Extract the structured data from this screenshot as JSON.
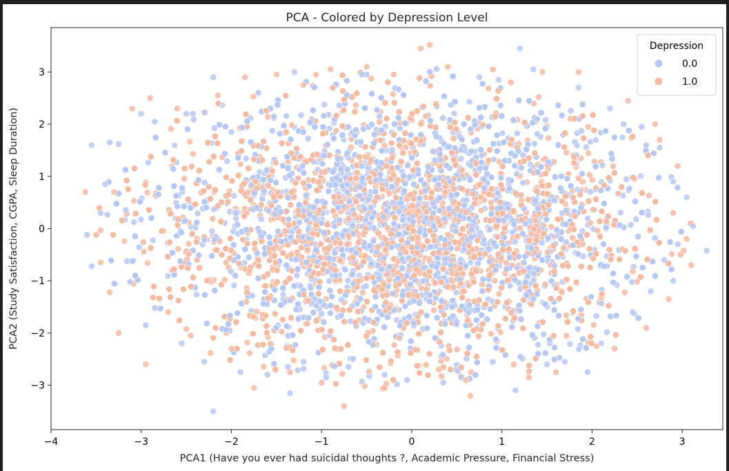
{
  "chart_data": {
    "type": "scatter",
    "title": "PCA - Colored by Depression Level",
    "xlabel": "PCA1 (Have you ever had suicidal thoughts ?, Academic Pressure, Financial Stress)",
    "ylabel": "PCA2 (Study Satisfaction, CGPA, Sleep Duration)",
    "xlim": [
      -4,
      3.45
    ],
    "ylim": [
      -3.85,
      3.85
    ],
    "xticks": [
      "−4",
      "−3",
      "−2",
      "−1",
      "0",
      "1",
      "2",
      "3"
    ],
    "xtick_values": [
      -4,
      -3,
      -2,
      -1,
      0,
      1,
      2,
      3
    ],
    "yticks": [
      "3",
      "2",
      "1",
      "0",
      "−1",
      "−2",
      "−3"
    ],
    "ytick_values": [
      3,
      2,
      1,
      0,
      -1,
      -2,
      -3
    ],
    "grid": false,
    "legend": {
      "title": "Depression",
      "placement": "top-right"
    },
    "series": [
      {
        "name": "0.0",
        "color": "#b4c7f3",
        "points": [
          [
            -3.55,
            1.6
          ],
          [
            -3.6,
            -0.12
          ],
          [
            -3.55,
            -0.72
          ],
          [
            -3.35,
            1.65
          ],
          [
            -3.25,
            1.62
          ],
          [
            -3.4,
            0.85
          ],
          [
            -3.0,
            2.2
          ],
          [
            -2.95,
            -1.85
          ],
          [
            -2.85,
            2.05
          ],
          [
            -2.55,
            -2.2
          ],
          [
            -2.5,
            2.2
          ],
          [
            -2.3,
            -2.55
          ],
          [
            -2.2,
            2.9
          ],
          [
            -2.2,
            -3.5
          ],
          [
            -1.9,
            -2.75
          ],
          [
            -1.7,
            2.6
          ],
          [
            -1.6,
            -2.8
          ],
          [
            -1.3,
            3.0
          ],
          [
            -1.35,
            -3.15
          ],
          [
            -1.2,
            -2.55
          ],
          [
            -0.95,
            -2.85
          ],
          [
            -0.7,
            -2.65
          ],
          [
            -0.55,
            2.95
          ],
          [
            -0.3,
            -2.8
          ],
          [
            -0.05,
            -2.9
          ],
          [
            0.2,
            3.0
          ],
          [
            0.35,
            -2.95
          ],
          [
            0.55,
            -2.85
          ],
          [
            0.75,
            2.9
          ],
          [
            0.9,
            -2.55
          ],
          [
            1.15,
            -3.1
          ],
          [
            1.2,
            3.45
          ],
          [
            1.35,
            3.05
          ],
          [
            1.5,
            -2.6
          ],
          [
            1.7,
            -2.55
          ],
          [
            1.85,
            2.7
          ],
          [
            1.95,
            -2.75
          ],
          [
            2.1,
            -2.2
          ],
          [
            2.2,
            2.3
          ],
          [
            2.35,
            2.0
          ],
          [
            2.45,
            -1.6
          ],
          [
            2.55,
            1.95
          ],
          [
            2.65,
            -1.2
          ],
          [
            2.75,
            1.55
          ],
          [
            2.8,
            -0.6
          ],
          [
            2.9,
            0.9
          ],
          [
            2.95,
            -0.3
          ],
          [
            3.05,
            0.6
          ],
          [
            3.12,
            0.05
          ],
          [
            3.27,
            -0.42
          ],
          [
            2.9,
            -1.0
          ],
          [
            2.6,
            1.6
          ],
          [
            -3.3,
            -1.05
          ],
          [
            -3.45,
            0.3
          ]
        ]
      },
      {
        "name": "1.0",
        "color": "#f5b8a0",
        "points": [
          [
            -3.62,
            0.7
          ],
          [
            -3.45,
            -0.65
          ],
          [
            -3.35,
            -1.22
          ],
          [
            -3.25,
            -2.0
          ],
          [
            -3.1,
            2.3
          ],
          [
            -2.95,
            -2.6
          ],
          [
            -2.9,
            2.5
          ],
          [
            -2.6,
            2.3
          ],
          [
            -2.7,
            -1.6
          ],
          [
            -2.45,
            -2.05
          ],
          [
            -2.15,
            2.55
          ],
          [
            -2.0,
            -2.3
          ],
          [
            -1.85,
            2.9
          ],
          [
            -1.75,
            -3.05
          ],
          [
            -1.5,
            2.95
          ],
          [
            -1.35,
            -2.75
          ],
          [
            -1.2,
            2.75
          ],
          [
            -1.0,
            -2.95
          ],
          [
            -0.9,
            3.05
          ],
          [
            -0.75,
            -3.4
          ],
          [
            -0.5,
            3.1
          ],
          [
            -0.3,
            -3.05
          ],
          [
            -0.2,
            2.95
          ],
          [
            0.1,
            3.45
          ],
          [
            0.2,
            3.52
          ],
          [
            0.3,
            -2.7
          ],
          [
            0.4,
            3.1
          ],
          [
            0.6,
            -2.9
          ],
          [
            0.9,
            3.05
          ],
          [
            0.65,
            -3.2
          ],
          [
            1.1,
            2.8
          ],
          [
            1.3,
            -2.85
          ],
          [
            1.45,
            3.0
          ],
          [
            1.6,
            -2.75
          ],
          [
            1.85,
            3.0
          ],
          [
            2.05,
            -2.25
          ],
          [
            2.25,
            -2.3
          ],
          [
            2.4,
            2.45
          ],
          [
            2.6,
            -1.9
          ],
          [
            2.75,
            1.7
          ],
          [
            2.85,
            -1.35
          ],
          [
            2.95,
            1.2
          ],
          [
            2.98,
            -0.5
          ],
          [
            3.05,
            -0.2
          ],
          [
            3.1,
            -0.7
          ],
          [
            2.7,
            2.0
          ],
          [
            -3.5,
            -0.12
          ],
          [
            -3.3,
            0.7
          ],
          [
            2.9,
            0.3
          ]
        ]
      }
    ]
  }
}
